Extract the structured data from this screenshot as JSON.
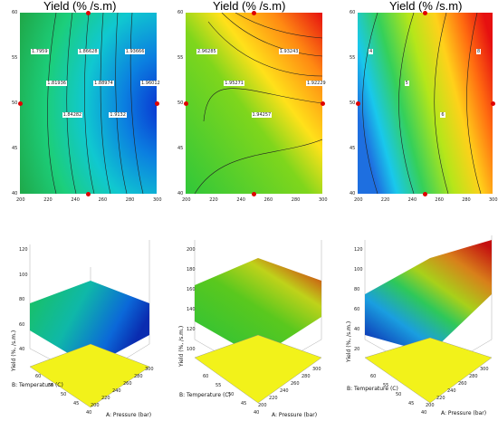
{
  "chart_data": [
    {
      "type": "heatmap",
      "title": "Yield (% /s.m)",
      "x": {
        "min": 200,
        "max": 300,
        "ticks": [
          "200",
          "220",
          "240",
          "260",
          "280",
          "300"
        ]
      },
      "y": {
        "min": 40,
        "max": 60,
        "ticks": [
          "40",
          "45",
          "50",
          "55",
          "60"
        ]
      },
      "contour_labels": [
        "1.7959",
        "1.81936",
        "1.84282",
        "1.86628",
        "1.88974",
        "1.9132",
        "1.93666",
        "1.96012"
      ],
      "design_points": 6,
      "palette": [
        "#1b9b52",
        "#22c46a",
        "#0fd0b9",
        "#0b8fe0",
        "#0a3ed4"
      ]
    },
    {
      "type": "heatmap",
      "title": "Yield (% /s.m)",
      "x": {
        "min": 200,
        "max": 300,
        "ticks": [
          "200",
          "220",
          "240",
          "260",
          "280",
          "300"
        ]
      },
      "y": {
        "min": 40,
        "max": 60,
        "ticks": [
          "40",
          "45",
          "50",
          "55",
          "60"
        ]
      },
      "contour_labels": [
        "2.96285",
        "1.95271",
        "1.94257",
        "1.93243",
        "1.92229"
      ],
      "palette": [
        "#33cc33",
        "#bfe61a",
        "#ffe11a",
        "#ff7a10",
        "#e61010"
      ]
    },
    {
      "type": "heatmap",
      "title": "Yield (% /s.m)",
      "x": {
        "min": 200,
        "max": 300,
        "ticks": [
          "200",
          "220",
          "240",
          "260",
          "280",
          "300"
        ]
      },
      "y": {
        "min": 40,
        "max": 60,
        "ticks": [
          "40",
          "45",
          "50",
          "55",
          "60"
        ]
      },
      "contour_labels": [
        "4",
        "5",
        "6",
        "8"
      ],
      "palette": [
        "#1e6fe0",
        "#16c8e8",
        "#33d65a",
        "#c8e61a",
        "#ff7a10",
        "#e61010"
      ]
    },
    {
      "type": "surface",
      "zlabel": "Yield (%, /s.m.)",
      "xlabel": "A: Pressure (bar)",
      "ylabel": "B: Temperature (C)",
      "zticks": [
        "40",
        "60",
        "80",
        "100",
        "120"
      ],
      "xticks": [
        "200",
        "220",
        "240",
        "260",
        "280",
        "300"
      ],
      "yticks": [
        "40",
        "45",
        "50",
        "55",
        "60"
      ]
    },
    {
      "type": "surface",
      "zlabel": "Yield (%, /s.m.)",
      "xlabel": "A: Pressure (bar)",
      "ylabel": "B: Temperature (C)",
      "zticks": [
        "100",
        "120",
        "140",
        "160",
        "180",
        "200"
      ],
      "xticks": [
        "200",
        "220",
        "240",
        "260",
        "280",
        "300"
      ],
      "yticks": [
        "40",
        "45",
        "50",
        "55",
        "60"
      ]
    },
    {
      "type": "surface",
      "zlabel": "Yield (%, /s.m.)",
      "xlabel": "A: Pressure (bar)",
      "ylabel": "B: Temperature (C)",
      "zticks": [
        "20",
        "40",
        "60",
        "80",
        "100",
        "120"
      ],
      "xticks": [
        "200",
        "220",
        "240",
        "260",
        "280",
        "300"
      ],
      "yticks": [
        "40",
        "45",
        "50",
        "55",
        "60"
      ]
    }
  ]
}
